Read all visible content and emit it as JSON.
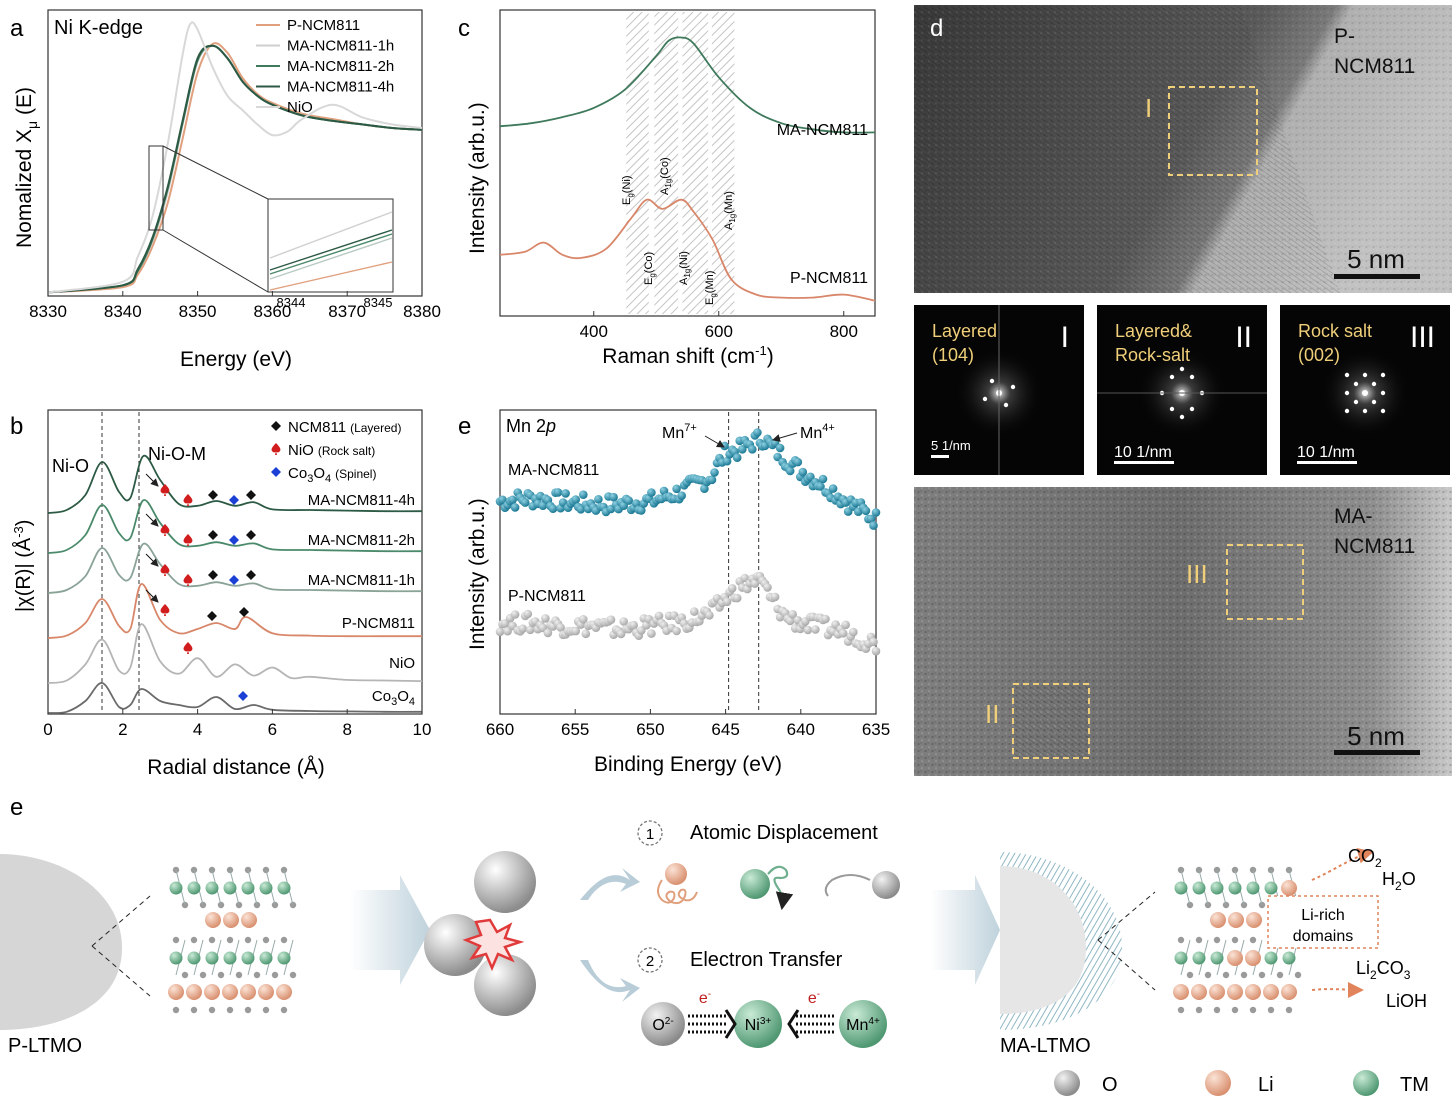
{
  "panels": {
    "a": "a",
    "b": "b",
    "c": "c",
    "d": "d",
    "e1": "e",
    "e2": "e"
  },
  "panel_a": {
    "subtitle": "Ni K-edge",
    "ylabel_main": "Nomalized X",
    "ylabel_sub": "μ",
    "ylabel_tail": " (E)",
    "inset_ticks": [
      "8344",
      "8345"
    ]
  },
  "panel_b": {
    "ylabel": "|χ(R)| (Å",
    "ylabel_sup": "-3",
    "ylabel_tail": ")",
    "label_nio_bond": "Ni-O",
    "label_nio_m": "Ni-O-M",
    "legend": [
      {
        "main": "NCM811",
        "note": "(Layered)",
        "color": "#111111",
        "marker": "diamond"
      },
      {
        "main": "NiO",
        "note": "(Rock salt)",
        "color": "#d11d1d",
        "marker": "spade"
      },
      {
        "main": "Co",
        "sub1": "3",
        "mid": "O",
        "sub2": "4",
        "note": "(Spinel)",
        "color": "#1c3fd6",
        "marker": "diamond"
      }
    ],
    "traces": [
      "MA-NCM811-4h",
      "MA-NCM811-2h",
      "MA-NCM811-1h",
      "P-NCM811",
      "NiO"
    ],
    "co3o4_label": {
      "main": "Co",
      "sub1": "3",
      "mid": "O",
      "sub2": "4"
    }
  },
  "panel_c": {
    "ylabel": "Intensity (arb.u.)",
    "xlabel_main": "Raman shift (cm",
    "xlabel_sup": "-1",
    "xlabel_tail": ")",
    "trace_labels": [
      "MA-NCM811",
      "P-NCM811"
    ],
    "band_labels_top": [
      {
        "main": "E",
        "sub": "g",
        "tail": "(Ni)"
      },
      {
        "main": "A",
        "sub": "1g",
        "tail": "(Co)"
      },
      {
        "main": "A",
        "sub": "1g",
        "tail": "(Mn)"
      }
    ],
    "band_labels_bottom": [
      {
        "main": "E",
        "sub": "g",
        "tail": "(Co)"
      },
      {
        "main": "A",
        "sub": "1g",
        "tail": "(Ni)"
      },
      {
        "main": "E",
        "sub": "g",
        "tail": "(Mn)"
      }
    ]
  },
  "panel_e_xps": {
    "title": "Mn 2",
    "title_italic": "p",
    "ylabel": "Intensity (arb.u.)",
    "xlabel": "Binding Energy (eV)",
    "trace_labels": [
      "MA-NCM811",
      "P-NCM811"
    ],
    "annot_mn7": {
      "main": "Mn",
      "sup": "7+"
    },
    "annot_mn4": {
      "main": "Mn",
      "sup": "4+"
    }
  },
  "panel_d": {
    "top_label_l1": "P-",
    "top_label_l2": "NCM811",
    "bottom_label_l1": "MA-",
    "bottom_label_l2": "NCM811",
    "scale_top": "5 nm",
    "scale_bottom": "5 nm",
    "roi": [
      "I",
      "II",
      "III"
    ],
    "fft": [
      {
        "l1": "Layered",
        "l2": "(104)",
        "roman": "I",
        "scale": "5 1/nm"
      },
      {
        "l1": "Layered&",
        "l2": "Rock-salt",
        "roman": "II",
        "scale": "10 1/nm"
      },
      {
        "l1": "Rock salt",
        "l2": "(002)",
        "roman": "III",
        "scale": "10 1/nm"
      }
    ]
  },
  "schematic": {
    "step1_num": "1",
    "step1": "Atomic Displacement",
    "step2_num": "2",
    "step2": "Electron Transfer",
    "o_ion": {
      "main": "O",
      "sup": "2-"
    },
    "ni_ion": {
      "main": "Ni",
      "sup": "3+"
    },
    "mn_ion": {
      "main": "Mn",
      "sup": "4+"
    },
    "electron": {
      "main": "e",
      "sup": "-"
    },
    "left_label": "P-LTMO",
    "right_label": "MA-LTMO",
    "co2": {
      "main": "CO",
      "sub": "2"
    },
    "h2o": {
      "main": "H",
      "sub": "2",
      "tail": "O"
    },
    "li_rich_l1": "Li-rich",
    "li_rich_l2": "domains",
    "li2co3": {
      "main": "Li",
      "sub1": "2",
      "mid": "CO",
      "sub2": "3"
    },
    "lioh": "LiOH",
    "legend": [
      {
        "label": "O",
        "color": "#8f8f8f"
      },
      {
        "label": "Li",
        "color": "#e3a58a"
      },
      {
        "label": "TM",
        "color": "#6fae8e"
      }
    ]
  },
  "chart_data": [
    {
      "panel": "a",
      "type": "line",
      "xlabel": "Energy (eV)",
      "ylabel": "Nomalized Xμ (E)",
      "xlim": [
        8330,
        8380
      ],
      "x_ticks": [
        "8330",
        "8340",
        "8350",
        "8360",
        "8370",
        "8380"
      ],
      "series": [
        {
          "name": "P-NCM811",
          "color": "#e0a07e",
          "x": [
            8330,
            8340,
            8342,
            8344,
            8346,
            8348,
            8350,
            8352,
            8354,
            8356,
            8358,
            8360,
            8364,
            8368,
            8372,
            8376,
            8380
          ],
          "y": [
            0.02,
            0.05,
            0.12,
            0.28,
            0.52,
            0.88,
            1.25,
            1.41,
            1.36,
            1.22,
            1.13,
            1.08,
            1.02,
            0.99,
            0.96,
            0.94,
            0.93
          ]
        },
        {
          "name": "MA-NCM811-1h",
          "color": "#cfcfcf",
          "x": [
            8330,
            8340,
            8342,
            8344,
            8346,
            8348,
            8350,
            8352,
            8354,
            8356,
            8358,
            8360,
            8364,
            8368,
            8372,
            8376,
            8380
          ],
          "y": [
            0.02,
            0.06,
            0.14,
            0.31,
            0.58,
            0.96,
            1.31,
            1.4,
            1.33,
            1.2,
            1.12,
            1.07,
            1.01,
            0.98,
            0.96,
            0.94,
            0.93
          ]
        },
        {
          "name": "MA-NCM811-2h",
          "color": "#3f7a5c",
          "x": [
            8330,
            8340,
            8342,
            8344,
            8346,
            8348,
            8350,
            8352,
            8354,
            8356,
            8358,
            8360,
            8364,
            8368,
            8372,
            8376,
            8380
          ],
          "y": [
            0.02,
            0.06,
            0.14,
            0.32,
            0.6,
            0.97,
            1.32,
            1.4,
            1.33,
            1.2,
            1.12,
            1.07,
            1.01,
            0.98,
            0.96,
            0.94,
            0.93
          ]
        },
        {
          "name": "MA-NCM811-4h",
          "color": "#2c5a44",
          "x": [
            8330,
            8340,
            8342,
            8344,
            8346,
            8348,
            8350,
            8352,
            8354,
            8356,
            8358,
            8360,
            8364,
            8368,
            8372,
            8376,
            8380
          ],
          "y": [
            0.02,
            0.06,
            0.15,
            0.33,
            0.61,
            0.98,
            1.33,
            1.4,
            1.33,
            1.2,
            1.12,
            1.07,
            1.01,
            0.98,
            0.96,
            0.94,
            0.93
          ]
        },
        {
          "name": "NiO",
          "color": "#d8d8d8",
          "x": [
            8330,
            8340,
            8342,
            8344,
            8346,
            8348,
            8349,
            8350,
            8352,
            8354,
            8356,
            8358,
            8360,
            8362,
            8364,
            8368,
            8372,
            8376,
            8380
          ],
          "y": [
            0.02,
            0.08,
            0.22,
            0.45,
            0.85,
            1.35,
            1.52,
            1.49,
            1.28,
            1.12,
            1.04,
            0.96,
            0.9,
            0.92,
            0.99,
            1.07,
            1.0,
            0.96,
            0.94
          ]
        }
      ]
    },
    {
      "panel": "b",
      "type": "line",
      "xlabel": "Radial distance (Å)",
      "ylabel": "|χ(R)| (Å-3)",
      "xlim": [
        0,
        10
      ],
      "x_ticks": [
        "0",
        "2",
        "4",
        "6",
        "8",
        "10"
      ],
      "reference_lines": [
        1.45,
        2.45
      ],
      "series": [
        {
          "name": "MA-NCM811-4h",
          "color": "#2c5a44",
          "x": [
            0,
            0.5,
            1.0,
            1.45,
            1.9,
            2.2,
            2.55,
            3.0,
            3.5,
            4.0,
            4.5,
            5.0,
            5.5,
            6,
            7,
            8,
            9,
            10
          ],
          "y": [
            0,
            0.05,
            0.3,
            0.85,
            0.35,
            0.25,
            0.95,
            0.55,
            0.15,
            0.12,
            0.2,
            0.12,
            0.18,
            0.06,
            0.05,
            0.04,
            0.03,
            0.03
          ]
        },
        {
          "name": "MA-NCM811-2h",
          "color": "#4a8a6a",
          "x": [
            0,
            0.5,
            1.0,
            1.45,
            1.9,
            2.2,
            2.55,
            3.0,
            3.5,
            4.0,
            4.5,
            5.0,
            5.5,
            6,
            7,
            8,
            9,
            10
          ],
          "y": [
            0,
            0.05,
            0.3,
            0.8,
            0.33,
            0.25,
            0.88,
            0.5,
            0.15,
            0.12,
            0.18,
            0.12,
            0.16,
            0.06,
            0.05,
            0.04,
            0.03,
            0.03
          ]
        },
        {
          "name": "MA-NCM811-1h",
          "color": "#8aa397",
          "x": [
            0,
            0.5,
            1.0,
            1.45,
            1.9,
            2.2,
            2.55,
            3.0,
            3.5,
            4.0,
            4.5,
            5.0,
            5.5,
            6,
            7,
            8,
            9,
            10
          ],
          "y": [
            0,
            0.05,
            0.28,
            0.75,
            0.3,
            0.25,
            0.82,
            0.48,
            0.15,
            0.12,
            0.18,
            0.12,
            0.16,
            0.06,
            0.05,
            0.04,
            0.03,
            0.03
          ]
        },
        {
          "name": "P-NCM811",
          "color": "#d8876a",
          "x": [
            0,
            0.5,
            1.0,
            1.45,
            1.9,
            2.2,
            2.5,
            3.0,
            3.5,
            4.0,
            4.5,
            5.0,
            5.3,
            6,
            7,
            8,
            9,
            10
          ],
          "y": [
            0,
            0.04,
            0.25,
            0.65,
            0.2,
            0.15,
            0.9,
            0.3,
            0.08,
            0.15,
            0.25,
            0.15,
            0.35,
            0.08,
            0.04,
            0.03,
            0.03,
            0.03
          ]
        },
        {
          "name": "NiO",
          "color": "#b5b5b5",
          "x": [
            0,
            0.5,
            1.0,
            1.45,
            1.9,
            2.2,
            2.5,
            3.0,
            3.5,
            4.0,
            4.5,
            5.0,
            5.5,
            6,
            6.5,
            7,
            8,
            9,
            10
          ],
          "y": [
            0,
            0.04,
            0.3,
            0.7,
            0.2,
            0.25,
            0.95,
            0.35,
            0.15,
            0.4,
            0.1,
            0.3,
            0.12,
            0.25,
            0.08,
            0.1,
            0.05,
            0.04,
            0.03
          ]
        },
        {
          "name": "Co3O4",
          "color": "#6a6a6a",
          "x": [
            0,
            0.5,
            1.0,
            1.45,
            1.9,
            2.2,
            2.5,
            3.0,
            3.5,
            4.0,
            4.5,
            5.0,
            5.5,
            6,
            7,
            8,
            9,
            10
          ],
          "y": [
            0,
            0.03,
            0.3,
            0.75,
            0.15,
            0.2,
            0.6,
            0.3,
            0.2,
            0.15,
            0.4,
            0.1,
            0.2,
            0.08,
            0.05,
            0.04,
            0.03,
            0.03
          ]
        }
      ]
    },
    {
      "panel": "c",
      "type": "line",
      "xlabel": "Raman shift (cm-1)",
      "ylabel": "Intensity (arb.u.)",
      "xlim": [
        250,
        850
      ],
      "x_ticks": [
        "400",
        "600",
        "800"
      ],
      "bands": [
        460,
        480,
        505,
        527,
        550,
        575,
        597,
        617
      ],
      "series": [
        {
          "name": "MA-NCM811",
          "color": "#3f7a5c",
          "x": [
            250,
            300,
            350,
            400,
            450,
            500,
            520,
            540,
            560,
            600,
            650,
            700,
            750,
            800,
            850
          ],
          "y": [
            0.62,
            0.63,
            0.65,
            0.68,
            0.74,
            0.85,
            0.9,
            0.91,
            0.89,
            0.78,
            0.68,
            0.63,
            0.61,
            0.6,
            0.6
          ]
        },
        {
          "name": "P-NCM811",
          "color": "#d8876a",
          "x": [
            250,
            290,
            320,
            350,
            380,
            420,
            460,
            485,
            510,
            540,
            560,
            590,
            620,
            660,
            700,
            750,
            800,
            850
          ],
          "y": [
            0.2,
            0.21,
            0.24,
            0.2,
            0.19,
            0.22,
            0.32,
            0.38,
            0.35,
            0.38,
            0.34,
            0.25,
            0.12,
            0.07,
            0.06,
            0.06,
            0.07,
            0.05
          ]
        }
      ]
    },
    {
      "panel": "e (XPS)",
      "type": "scatter",
      "xlabel": "Binding Energy (eV)",
      "ylabel": "Intensity (arb.u.)",
      "xlim": [
        660,
        635
      ],
      "x_ticks": [
        "660",
        "655",
        "650",
        "645",
        "640",
        "635"
      ],
      "reference_lines": [
        644.8,
        642.8
      ],
      "series": [
        {
          "name": "MA-NCM811",
          "color": "#2a8ca8",
          "x": [
            660,
            658,
            656,
            654,
            652,
            650,
            648,
            646,
            645,
            644,
            643,
            642.5,
            642,
            641,
            640,
            639,
            638,
            637,
            636,
            635
          ],
          "y": [
            0.7,
            0.71,
            0.7,
            0.69,
            0.69,
            0.7,
            0.73,
            0.78,
            0.86,
            0.87,
            0.9,
            0.91,
            0.88,
            0.84,
            0.8,
            0.77,
            0.74,
            0.7,
            0.67,
            0.64
          ]
        },
        {
          "name": "P-NCM811",
          "color": "#c6c6c6",
          "x": [
            660,
            658,
            656,
            654,
            652,
            650,
            648,
            646,
            645,
            644,
            643,
            642.5,
            642,
            641,
            640,
            639,
            638,
            637,
            636,
            635
          ],
          "y": [
            0.3,
            0.3,
            0.29,
            0.29,
            0.28,
            0.29,
            0.3,
            0.33,
            0.38,
            0.42,
            0.44,
            0.43,
            0.38,
            0.32,
            0.3,
            0.29,
            0.28,
            0.27,
            0.25,
            0.23
          ]
        }
      ]
    }
  ]
}
